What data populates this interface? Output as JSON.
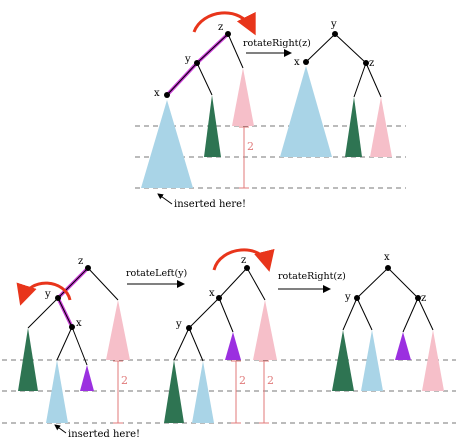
{
  "colors": {
    "light_blue": "#a9d4e7",
    "dark_green": "#2e7452",
    "pink": "#f6bfc9",
    "purple": "#9b30e0",
    "red_arrow": "#e8351b",
    "magenta_highlight": "#cc3fd9",
    "dashed_line": "#777777",
    "height_marker": "#e07a7a"
  },
  "top_figure": {
    "before": {
      "labels": {
        "z": "z",
        "y": "y",
        "x": "x"
      },
      "height_label": "2",
      "annotation": "inserted here!"
    },
    "operation": "rotateRight(z)",
    "after": {
      "labels": {
        "y": "y",
        "x": "x",
        "z": "z"
      }
    }
  },
  "bottom_figure": {
    "stage1": {
      "labels": {
        "z": "z",
        "y": "y",
        "x": "x"
      },
      "height_label": "2",
      "annotation": "inserted here!"
    },
    "operation1": "rotateLeft(y)",
    "stage2": {
      "labels": {
        "z": "z",
        "x": "x",
        "y": "y"
      },
      "height_label_1": "2",
      "height_label_2": "2"
    },
    "operation2": "rotateRight(z)",
    "stage3": {
      "labels": {
        "x": "x",
        "y": "y",
        "z": "z"
      }
    }
  }
}
